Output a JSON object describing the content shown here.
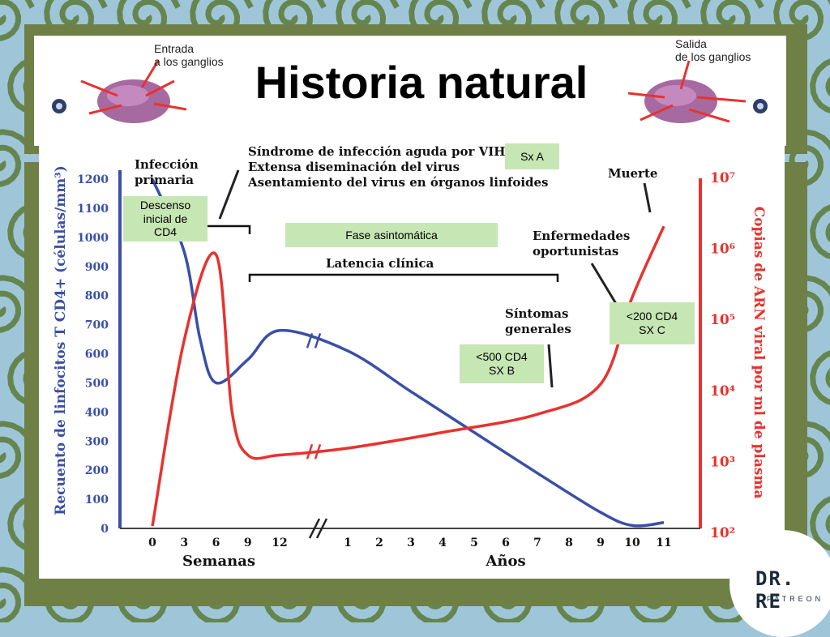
{
  "header": {
    "title": "Historia natural",
    "entry_label": "Entrada\na los ganglios",
    "exit_label": "Salida\nde los ganglios"
  },
  "annotations": {
    "infeccion_primaria": "Infección\nprimaria",
    "sindrome": "Síndrome de infección aguda por VIH\nExtensa diseminación del virus\nAsentamiento del virus en órganos linfoides",
    "latencia": "Latencia clínica",
    "muerte": "Muerte",
    "enfermedades": "Enfermedades\noportunistas",
    "sintomas": "Síntomas\ngenerales"
  },
  "boxes": {
    "sx_a": "Sx A",
    "descenso": "Descenso\ninicial de\nCD4",
    "fase": "Fase asintomática",
    "sx_b": "<500 CD4\nSX B",
    "sx_c": "<200 CD4\nSX C"
  },
  "logo": {
    "name": "DR. RE",
    "sub": "PATREON"
  },
  "colors": {
    "cd4": "#3a4fa6",
    "viral": "#e8322f",
    "frame": "#6e8046",
    "box": "#c6e6b3"
  },
  "chart_data": {
    "type": "line",
    "xlabel_left": "Semanas",
    "xlabel_right": "Años",
    "x_ticks_weeks": [
      "0",
      "3",
      "6",
      "9",
      "12"
    ],
    "x_ticks_years": [
      "1",
      "2",
      "3",
      "4",
      "5",
      "6",
      "7",
      "8",
      "9",
      "10",
      "11"
    ],
    "ylabel_left": "Recuento de linfocitos T CD4+ (células/mm³)",
    "ylabel_right": "Copias de ARN viral por ml de plasma",
    "y_left_ticks": [
      "0",
      "100",
      "200",
      "300",
      "400",
      "500",
      "600",
      "700",
      "800",
      "900",
      "1000",
      "1100",
      "1200"
    ],
    "y_left_lim": [
      0,
      1200
    ],
    "y_right_ticks": [
      "10²",
      "10³",
      "10⁴",
      "10⁵",
      "10⁶",
      "10⁷"
    ],
    "y_right_lim": [
      100,
      10000000
    ],
    "y_right_scale": "log",
    "series": [
      {
        "name": "CD4",
        "axis": "left",
        "points": [
          {
            "x": "0 sem",
            "y": 1200
          },
          {
            "x": "3 sem",
            "y": 950
          },
          {
            "x": "4.5 sem",
            "y": 650
          },
          {
            "x": "6 sem",
            "y": 500
          },
          {
            "x": "9 sem",
            "y": 580
          },
          {
            "x": "12 sem",
            "y": 680
          },
          {
            "x": "1 año",
            "y": 610
          },
          {
            "x": "3 años",
            "y": 470
          },
          {
            "x": "5 años",
            "y": 330
          },
          {
            "x": "7 años",
            "y": 190
          },
          {
            "x": "9 años",
            "y": 55
          },
          {
            "x": "10 años",
            "y": 10
          },
          {
            "x": "11 años",
            "y": 20
          }
        ]
      },
      {
        "name": "ARN viral",
        "axis": "right",
        "points": [
          {
            "x": "0 sem",
            "y": 120
          },
          {
            "x": "3 sem",
            "y": 50000
          },
          {
            "x": "6 sem",
            "y": 800000
          },
          {
            "x": "7.5 sem",
            "y": 5000
          },
          {
            "x": "9 sem",
            "y": 1200
          },
          {
            "x": "12 sem",
            "y": 1200
          },
          {
            "x": "1 año",
            "y": 1500
          },
          {
            "x": "4 años",
            "y": 2500
          },
          {
            "x": "7 años",
            "y": 4500
          },
          {
            "x": "9 años",
            "y": 12000
          },
          {
            "x": "10 años",
            "y": 200000
          },
          {
            "x": "11 años",
            "y": 2000000
          }
        ]
      }
    ]
  }
}
